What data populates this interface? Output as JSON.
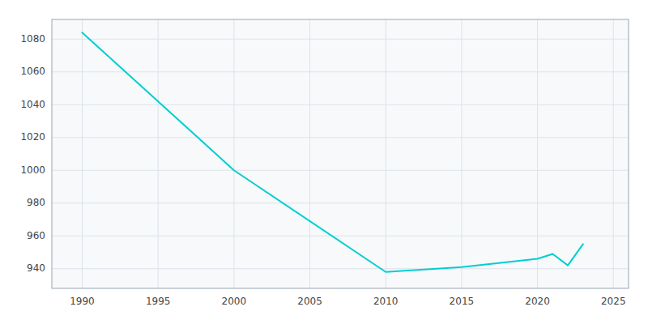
{
  "chart_data": {
    "type": "line",
    "x": [
      1990,
      2000,
      2010,
      2015,
      2020,
      2021,
      2022,
      2023
    ],
    "values": [
      1084,
      1000,
      938,
      941,
      946,
      949,
      942,
      955
    ],
    "color": "#00CED1",
    "xlim": [
      1988,
      2026
    ],
    "ylim": [
      928,
      1092
    ],
    "xticks": [
      1990,
      1995,
      2000,
      2005,
      2010,
      2015,
      2020,
      2025
    ],
    "yticks": [
      940,
      960,
      980,
      1000,
      1020,
      1040,
      1060,
      1080
    ],
    "grid": true
  }
}
